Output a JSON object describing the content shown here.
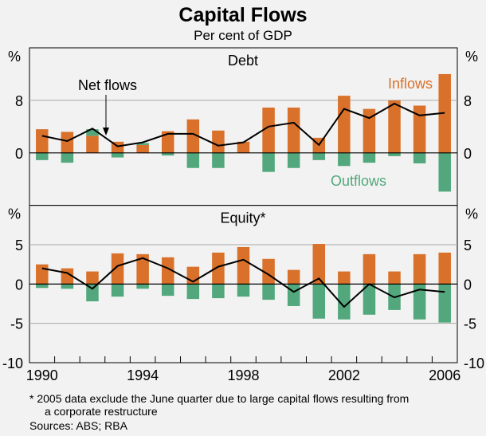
{
  "chart_data": [
    {
      "type": "bar",
      "title": "Capital Flows",
      "subtitle": "Per cent of GDP",
      "panel_title": "Debt",
      "ylabel": "%",
      "ylim": [
        -8,
        16
      ],
      "yticks": [
        0,
        8
      ],
      "categories": [
        1990,
        1991,
        1992,
        1993,
        1994,
        1995,
        1996,
        1997,
        1998,
        1999,
        2000,
        2001,
        2002,
        2003,
        2004,
        2005,
        2006
      ],
      "series": [
        {
          "name": "Inflows",
          "type": "bar",
          "color": "#d9712b",
          "values": [
            3.6,
            3.2,
            2.6,
            1.7,
            1.2,
            3.3,
            5.1,
            3.4,
            1.7,
            6.9,
            6.9,
            2.3,
            8.7,
            6.7,
            8.0,
            7.2,
            12.0
          ]
        },
        {
          "name": "Outflows",
          "type": "bar",
          "color": "#52a87c",
          "values": [
            -1.1,
            -1.5,
            1.0,
            -0.7,
            0.3,
            -0.4,
            -2.3,
            -2.3,
            0,
            -2.9,
            -2.3,
            -1.1,
            -2.0,
            -1.5,
            -0.5,
            -1.6,
            -5.9
          ]
        },
        {
          "name": "Net flows",
          "type": "line",
          "color": "#000000",
          "values": [
            2.6,
            1.8,
            3.7,
            1.0,
            1.6,
            2.9,
            2.9,
            1.1,
            1.6,
            4.0,
            4.6,
            1.2,
            6.7,
            5.3,
            7.5,
            5.7,
            6.1
          ]
        }
      ],
      "annotations": [
        "Net flows",
        "Inflows",
        "Outflows"
      ]
    },
    {
      "type": "bar",
      "panel_title": "Equity*",
      "ylabel": "%",
      "ylim": [
        -10,
        10
      ],
      "yticks": [
        -10,
        -5,
        0,
        5
      ],
      "categories": [
        1990,
        1991,
        1992,
        1993,
        1994,
        1995,
        1996,
        1997,
        1998,
        1999,
        2000,
        2001,
        2002,
        2003,
        2004,
        2005,
        2006
      ],
      "xtick_labels": [
        "1990",
        "1994",
        "1998",
        "2002",
        "2006"
      ],
      "series": [
        {
          "name": "Inflows",
          "type": "bar",
          "color": "#d9712b",
          "values": [
            2.5,
            2.0,
            1.6,
            3.9,
            3.8,
            3.4,
            2.2,
            4.0,
            4.7,
            3.2,
            1.8,
            5.1,
            1.6,
            3.8,
            1.6,
            3.8,
            4.0
          ]
        },
        {
          "name": "Outflows",
          "type": "bar",
          "color": "#52a87c",
          "values": [
            -0.5,
            -0.6,
            -2.2,
            -1.6,
            -0.6,
            -1.5,
            -1.9,
            -1.8,
            -1.6,
            -2.0,
            -2.8,
            -4.4,
            -4.5,
            -3.9,
            -3.3,
            -4.5,
            -4.9
          ]
        },
        {
          "name": "Net flows",
          "type": "line",
          "color": "#000000",
          "values": [
            2.0,
            1.4,
            -0.6,
            2.3,
            3.3,
            2.0,
            0.3,
            2.2,
            3.1,
            1.2,
            -1.0,
            0.7,
            -2.9,
            0.0,
            -1.7,
            -0.7,
            -1.0
          ]
        }
      ]
    }
  ],
  "footnote": "*  2005 data exclude the June quarter due to large capital flows resulting from",
  "footnote_cont": "a corporate restructure",
  "sources": "Sources: ABS; RBA"
}
